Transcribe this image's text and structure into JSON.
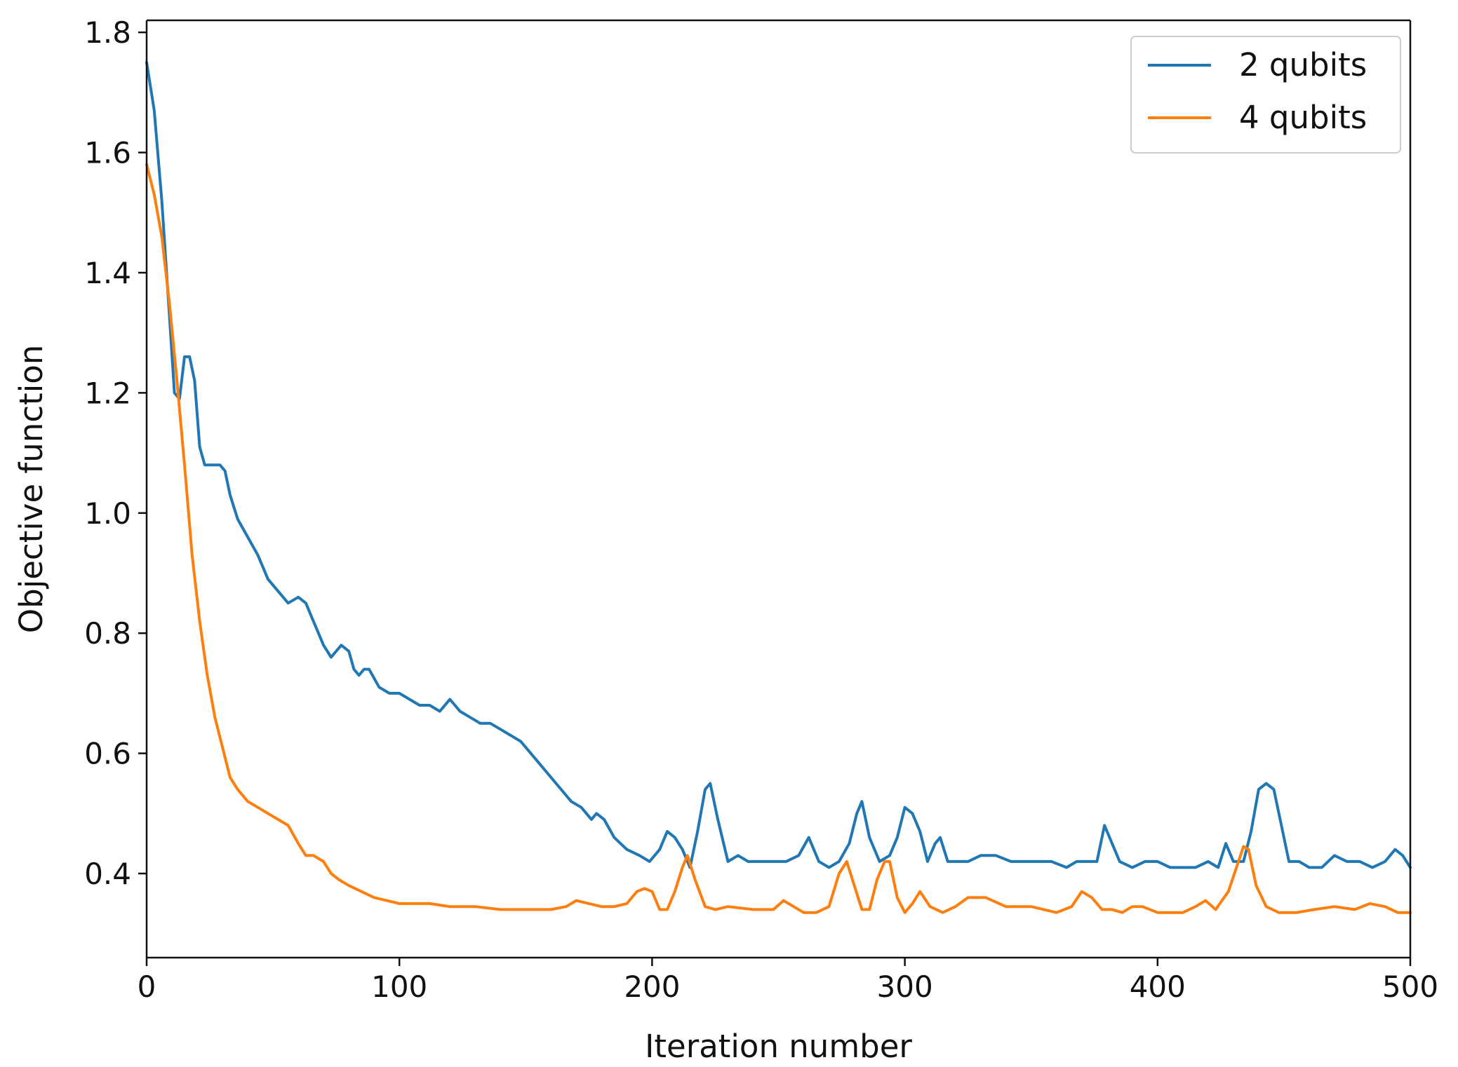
{
  "chart_data": {
    "type": "line",
    "xlabel": "Iteration number",
    "ylabel": "Objective function",
    "xlim": [
      0,
      500
    ],
    "ylim": [
      0.26,
      1.82
    ],
    "xticks": [
      0,
      100,
      200,
      300,
      400,
      500
    ],
    "yticks": [
      0.4,
      0.6,
      0.8,
      1.0,
      1.2,
      1.4,
      1.6,
      1.8
    ],
    "xtick_labels": [
      "0",
      "100",
      "200",
      "300",
      "400",
      "500"
    ],
    "ytick_labels": [
      "0.4",
      "0.6",
      "0.8",
      "1.0",
      "1.2",
      "1.4",
      "1.6",
      "1.8"
    ],
    "grid": false,
    "legend_position": "top-right",
    "series": [
      {
        "name": "2 qubits",
        "color": "#1f77b4",
        "x": [
          0,
          3,
          6,
          9,
          11,
          13,
          15,
          17,
          19,
          21,
          23,
          25,
          27,
          29,
          31,
          33,
          36,
          40,
          44,
          48,
          52,
          56,
          60,
          63,
          66,
          70,
          73,
          77,
          80,
          82,
          84,
          86,
          88,
          92,
          96,
          100,
          104,
          108,
          112,
          116,
          120,
          124,
          128,
          132,
          136,
          140,
          144,
          148,
          152,
          156,
          160,
          164,
          168,
          172,
          176,
          178,
          181,
          185,
          190,
          195,
          199,
          203,
          206,
          209,
          212,
          215,
          218,
          221,
          223,
          226,
          230,
          234,
          238,
          243,
          248,
          253,
          258,
          262,
          266,
          270,
          274,
          278,
          281,
          283,
          286,
          290,
          294,
          297,
          300,
          303,
          306,
          309,
          312,
          314,
          317,
          320,
          325,
          330,
          336,
          342,
          350,
          358,
          364,
          368,
          372,
          376,
          379,
          382,
          385,
          390,
          395,
          400,
          405,
          410,
          415,
          420,
          424,
          427,
          430,
          434,
          437,
          440,
          443,
          446,
          449,
          452,
          456,
          460,
          465,
          470,
          475,
          480,
          485,
          490,
          494,
          497,
          500
        ],
        "values": [
          1.75,
          1.67,
          1.52,
          1.33,
          1.2,
          1.19,
          1.26,
          1.26,
          1.22,
          1.11,
          1.08,
          1.08,
          1.08,
          1.08,
          1.07,
          1.03,
          0.99,
          0.96,
          0.93,
          0.89,
          0.87,
          0.85,
          0.86,
          0.85,
          0.82,
          0.78,
          0.76,
          0.78,
          0.77,
          0.74,
          0.73,
          0.74,
          0.74,
          0.71,
          0.7,
          0.7,
          0.69,
          0.68,
          0.68,
          0.67,
          0.69,
          0.67,
          0.66,
          0.65,
          0.65,
          0.64,
          0.63,
          0.62,
          0.6,
          0.58,
          0.56,
          0.54,
          0.52,
          0.51,
          0.49,
          0.5,
          0.49,
          0.46,
          0.44,
          0.43,
          0.42,
          0.44,
          0.47,
          0.46,
          0.44,
          0.41,
          0.47,
          0.54,
          0.55,
          0.49,
          0.42,
          0.43,
          0.42,
          0.42,
          0.42,
          0.42,
          0.43,
          0.46,
          0.42,
          0.41,
          0.42,
          0.45,
          0.5,
          0.52,
          0.46,
          0.42,
          0.43,
          0.46,
          0.51,
          0.5,
          0.47,
          0.42,
          0.45,
          0.46,
          0.42,
          0.42,
          0.42,
          0.43,
          0.43,
          0.42,
          0.42,
          0.42,
          0.41,
          0.42,
          0.42,
          0.42,
          0.48,
          0.45,
          0.42,
          0.41,
          0.42,
          0.42,
          0.41,
          0.41,
          0.41,
          0.42,
          0.41,
          0.45,
          0.42,
          0.42,
          0.47,
          0.54,
          0.55,
          0.54,
          0.48,
          0.42,
          0.42,
          0.41,
          0.41,
          0.43,
          0.42,
          0.42,
          0.41,
          0.42,
          0.44,
          0.43,
          0.41
        ]
      },
      {
        "name": "4 qubits",
        "color": "#ff7f0e",
        "x": [
          0,
          3,
          6,
          9,
          12,
          15,
          18,
          21,
          24,
          27,
          30,
          33,
          36,
          40,
          44,
          48,
          52,
          56,
          60,
          63,
          66,
          70,
          73,
          76,
          80,
          85,
          90,
          95,
          100,
          106,
          112,
          120,
          130,
          140,
          150,
          160,
          166,
          170,
          175,
          180,
          185,
          190,
          194,
          197,
          200,
          203,
          206,
          209,
          212,
          214,
          217,
          221,
          225,
          230,
          240,
          248,
          252,
          256,
          260,
          265,
          270,
          274,
          277,
          280,
          283,
          286,
          289,
          292,
          294,
          297,
          300,
          303,
          306,
          310,
          315,
          320,
          325,
          332,
          340,
          350,
          360,
          366,
          370,
          374,
          378,
          382,
          386,
          390,
          394,
          400,
          410,
          415,
          419,
          423,
          428,
          432,
          434,
          436,
          439,
          443,
          448,
          455,
          462,
          470,
          478,
          484,
          490,
          495,
          500
        ],
        "values": [
          1.58,
          1.53,
          1.46,
          1.35,
          1.22,
          1.08,
          0.93,
          0.82,
          0.73,
          0.66,
          0.61,
          0.56,
          0.54,
          0.52,
          0.51,
          0.5,
          0.49,
          0.48,
          0.45,
          0.43,
          0.43,
          0.42,
          0.4,
          0.39,
          0.38,
          0.37,
          0.36,
          0.355,
          0.35,
          0.35,
          0.35,
          0.345,
          0.345,
          0.34,
          0.34,
          0.34,
          0.345,
          0.355,
          0.35,
          0.345,
          0.345,
          0.35,
          0.37,
          0.375,
          0.37,
          0.34,
          0.34,
          0.37,
          0.41,
          0.43,
          0.39,
          0.345,
          0.34,
          0.345,
          0.34,
          0.34,
          0.355,
          0.345,
          0.335,
          0.335,
          0.345,
          0.4,
          0.42,
          0.38,
          0.34,
          0.34,
          0.39,
          0.42,
          0.42,
          0.36,
          0.335,
          0.35,
          0.37,
          0.345,
          0.335,
          0.345,
          0.36,
          0.36,
          0.345,
          0.345,
          0.335,
          0.345,
          0.37,
          0.36,
          0.34,
          0.34,
          0.335,
          0.345,
          0.345,
          0.335,
          0.335,
          0.345,
          0.355,
          0.34,
          0.37,
          0.42,
          0.445,
          0.44,
          0.38,
          0.345,
          0.335,
          0.335,
          0.34,
          0.345,
          0.34,
          0.35,
          0.345,
          0.335,
          0.335
        ]
      }
    ]
  }
}
